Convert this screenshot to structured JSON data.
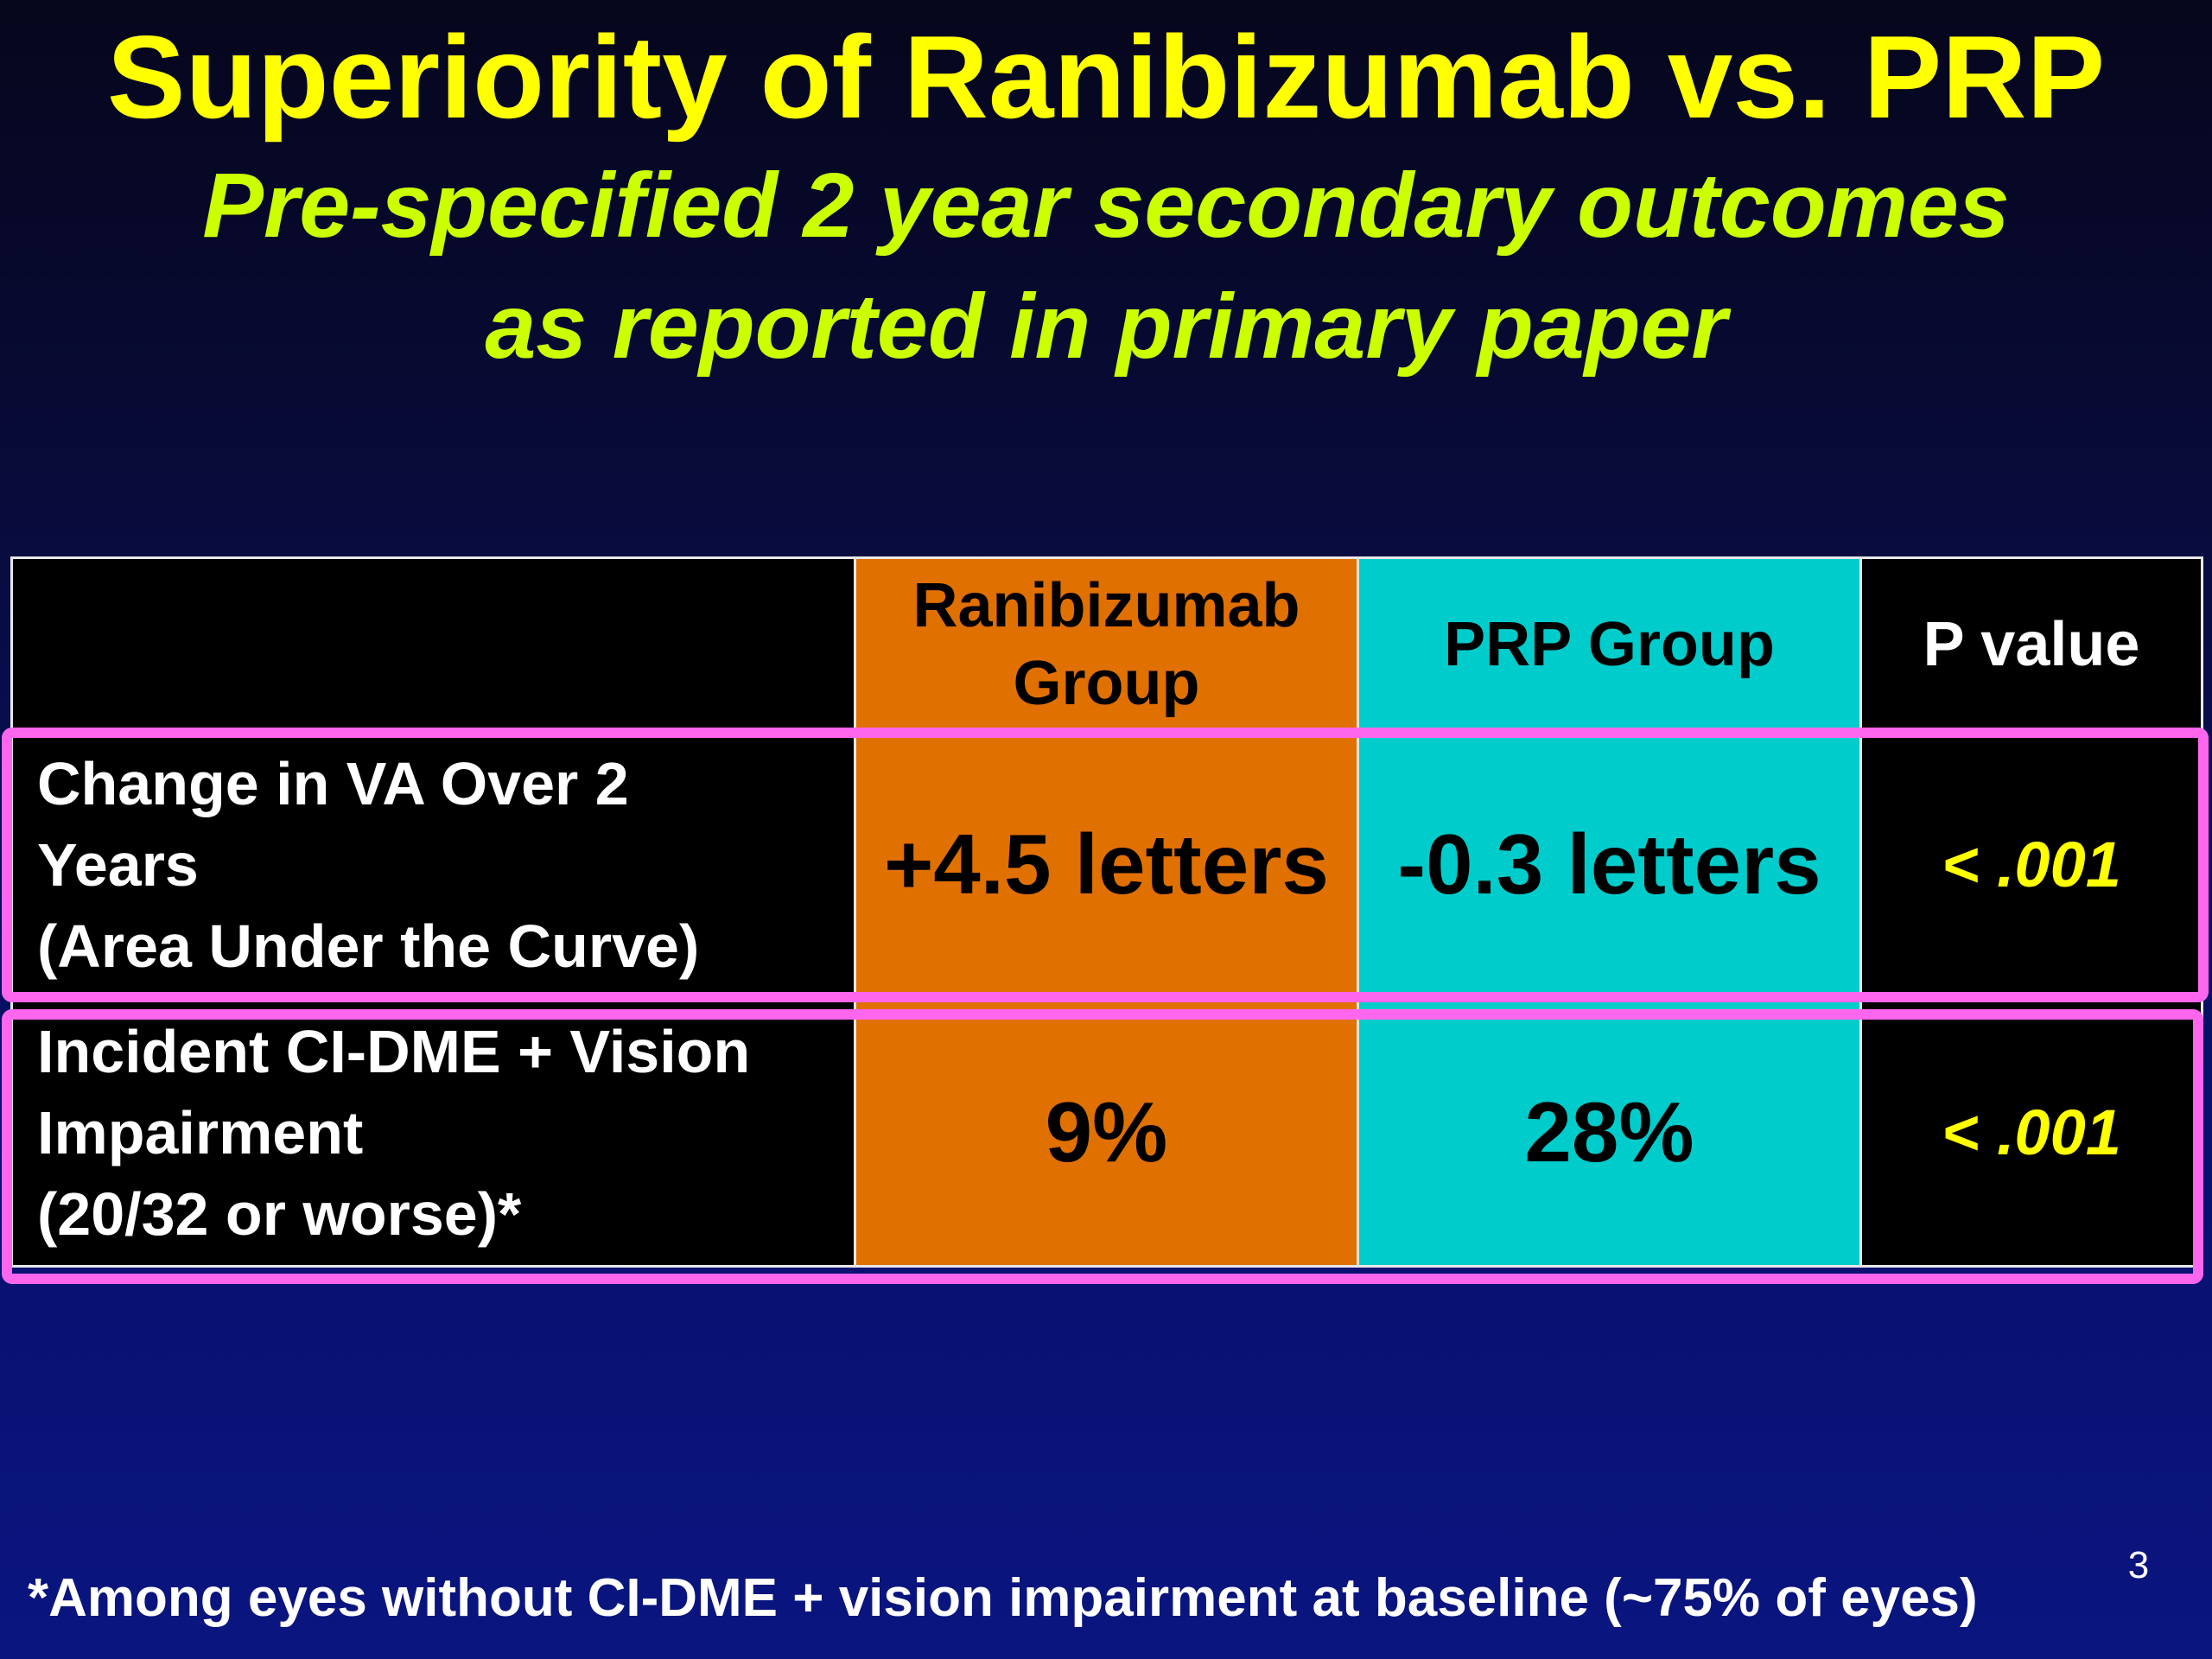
{
  "slide": {
    "title": "Superiority of Ranibizumab vs. PRP",
    "subtitle_line1": "Pre-specified 2 year secondary outcomes",
    "subtitle_line2": "as reported in primary paper",
    "slide_number": "3",
    "footnote": "*Among eyes without CI-DME + vision impairment at baseline (~75% of eyes)"
  },
  "table": {
    "headers": {
      "blank": "",
      "ranibizumab_line1": "Ranibizumab",
      "ranibizumab_line2": "Group",
      "prp": "PRP Group",
      "p_value": "P value"
    },
    "rows": [
      {
        "label_line1": "Change in VA Over 2",
        "label_line2": "Years",
        "label_line3": "(Area Under the Curve)",
        "ranibizumab": "+4.5 letters",
        "prp": "-0.3 letters",
        "p_value": "< .001"
      },
      {
        "label_line1": "Incident CI-DME + Vision",
        "label_line2": "Impairment",
        "label_line3": "(20/32 or worse)*",
        "ranibizumab": "9%",
        "prp": "28%",
        "p_value": "< .001"
      }
    ]
  },
  "colors": {
    "title": "#ffff00",
    "subtitle": "#ccff00",
    "ranibizumab_column": "#e07000",
    "prp_column": "#00cccc",
    "highlight_border": "#ff66ee",
    "p_value_text": "#ffff00"
  }
}
